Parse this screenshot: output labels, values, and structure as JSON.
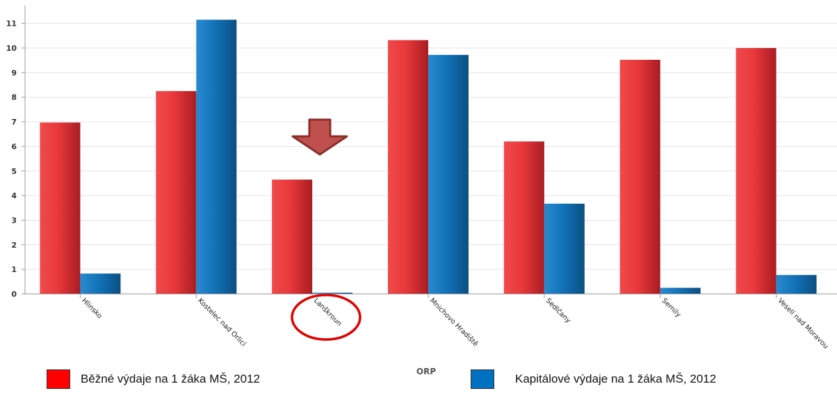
{
  "chart_data": {
    "type": "bar",
    "xlabel": "ORP",
    "ylabel": "",
    "ylim": [
      0,
      11.5
    ],
    "yticks": [
      0,
      1,
      2,
      3,
      4,
      5,
      6,
      7,
      8,
      9,
      10,
      11
    ],
    "grid": true,
    "legend_position": "bottom",
    "categories": [
      "Hlinsko",
      "Kostelec nad Orlicí",
      "Lanškroun",
      "Mnichovo Hradiště",
      "Sedlčany",
      "Semily",
      "Veselí nad Moravou"
    ],
    "series": [
      {
        "name": "Běžné výdaje na 1 žáka MŠ, 2012",
        "color": "#e8383b",
        "values": [
          6.97,
          8.25,
          4.65,
          10.32,
          6.2,
          9.52,
          10.0
        ]
      },
      {
        "name": "Kapitálové výdaje na 1 žáka MŠ, 2012",
        "color": "#1273b9",
        "values": [
          0.83,
          11.15,
          0.05,
          9.72,
          3.67,
          0.25,
          0.77
        ]
      }
    ],
    "annotations": [
      {
        "type": "arrow-down",
        "target_category": "Lanškroun",
        "color": "#c0504d"
      },
      {
        "type": "ellipse",
        "target_category": "Lanškroun",
        "color": "#e00000"
      }
    ]
  },
  "legend": {
    "items": [
      {
        "label": "Běžné výdaje na 1 žáka MŠ, 2012",
        "color": "#ff0000"
      },
      {
        "label": "Kapitálové výdaje na 1 žáka MŠ, 2012",
        "color": "#0070c0"
      }
    ]
  }
}
